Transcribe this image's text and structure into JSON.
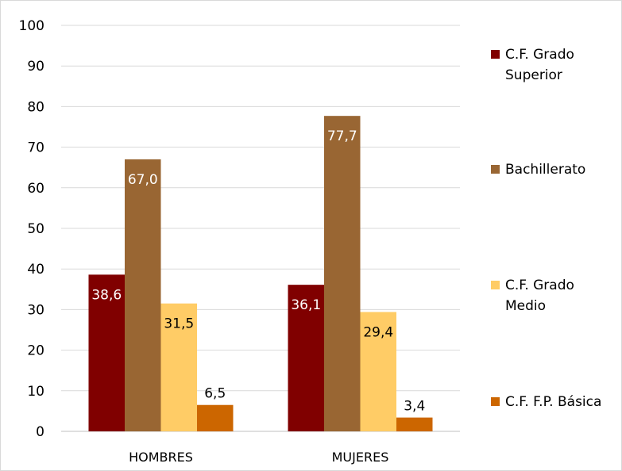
{
  "chart_data": {
    "type": "bar",
    "categories": [
      "HOMBRES",
      "MUJERES"
    ],
    "series": [
      {
        "name": "C.F. Grado Superior",
        "values": [
          38.6,
          36.1
        ],
        "labels": [
          "38,6",
          "36,1"
        ],
        "color": "#800000",
        "label_color": "#ffffff"
      },
      {
        "name": "Bachillerato",
        "values": [
          67.0,
          77.7
        ],
        "labels": [
          "67,0",
          "77,7"
        ],
        "color": "#996633",
        "label_color": "#ffffff"
      },
      {
        "name": "C.F. Grado Medio",
        "values": [
          31.5,
          29.4
        ],
        "labels": [
          "31,5",
          "29,4"
        ],
        "color": "#FFCC66",
        "label_color": "#000000"
      },
      {
        "name": "C.F. F.P. Básica",
        "values": [
          6.5,
          3.4
        ],
        "labels": [
          "6,5",
          "3,4"
        ],
        "color": "#CC6600",
        "label_color": "#000000"
      }
    ],
    "ylim": [
      0,
      100
    ],
    "yticks": [
      "0",
      "10",
      "20",
      "30",
      "40",
      "50",
      "60",
      "70",
      "80",
      "90",
      "100"
    ],
    "grid": true,
    "legend": "right",
    "title": "",
    "xlabel": "",
    "ylabel": ""
  }
}
